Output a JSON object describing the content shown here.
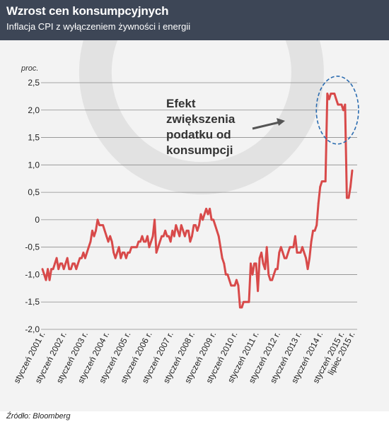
{
  "header": {
    "title": "Wzrost cen konsumpcyjnych",
    "subtitle": "Inflacja CPI z wyłączeniem żywności i energii"
  },
  "source": "Źródło: Bloomberg",
  "colors": {
    "header_bg": "#3d4656",
    "line": "#d84a4a",
    "ellipse": "#2b6cb0",
    "arrow": "#555555"
  },
  "chart_data": {
    "type": "line",
    "ylabel": "proc.",
    "ylim": [
      -2.0,
      2.5
    ],
    "yticks": [
      {
        "value": 2.5,
        "label": "2,5"
      },
      {
        "value": 2.0,
        "label": "2,0"
      },
      {
        "value": 1.5,
        "label": "1,5"
      },
      {
        "value": 1.0,
        "label": "1,0"
      },
      {
        "value": 0.5,
        "label": "0,5"
      },
      {
        "value": 0.0,
        "label": "0"
      },
      {
        "value": -0.5,
        "label": "-0,5"
      },
      {
        "value": -1.0,
        "label": "-1,0"
      },
      {
        "value": -1.5,
        "label": "-1,5"
      },
      {
        "value": -2.0,
        "label": "-2,0"
      }
    ],
    "xlim": [
      "2001-01",
      "2015-07"
    ],
    "xticks": [
      {
        "date": "2001-01",
        "label": "styczeń 2001 r."
      },
      {
        "date": "2002-01",
        "label": "styczeń 2002 r."
      },
      {
        "date": "2003-01",
        "label": "styczeń 2003 r."
      },
      {
        "date": "2004-01",
        "label": "styczeń 2004 r."
      },
      {
        "date": "2005-01",
        "label": "styczeń 2005 r."
      },
      {
        "date": "2006-01",
        "label": "styczeń 2006 r."
      },
      {
        "date": "2007-01",
        "label": "styczeń 2007 r."
      },
      {
        "date": "2008-01",
        "label": "styczeń 2008 r."
      },
      {
        "date": "2009-01",
        "label": "styczeń 2009 r."
      },
      {
        "date": "2010-01",
        "label": "styczeń 2010 r."
      },
      {
        "date": "2011-01",
        "label": "styczeń 2011 r."
      },
      {
        "date": "2012-01",
        "label": "styczeń 2012 r."
      },
      {
        "date": "2013-01",
        "label": "styczeń 2013 r."
      },
      {
        "date": "2014-01",
        "label": "styczeń 2014 r."
      },
      {
        "date": "2015-01",
        "label": "styczeń 2015 r."
      },
      {
        "date": "2015-07",
        "label": "lipiec 2015 r."
      }
    ],
    "annotation": {
      "lines": [
        "Efekt",
        "zwiększenia",
        "podatku od",
        "konsumpcji"
      ],
      "target_start": "2014-04",
      "target_end": "2015-03",
      "target_center_value": 2.0
    },
    "series": [
      {
        "points": [
          [
            "2001-01",
            -0.9
          ],
          [
            "2001-02",
            -1.0
          ],
          [
            "2001-03",
            -1.1
          ],
          [
            "2001-04",
            -0.9
          ],
          [
            "2001-05",
            -1.1
          ],
          [
            "2001-06",
            -0.9
          ],
          [
            "2001-07",
            -0.9
          ],
          [
            "2001-08",
            -0.8
          ],
          [
            "2001-09",
            -0.7
          ],
          [
            "2001-10",
            -0.9
          ],
          [
            "2001-11",
            -0.8
          ],
          [
            "2001-12",
            -0.8
          ],
          [
            "2002-01",
            -0.9
          ],
          [
            "2002-02",
            -0.8
          ],
          [
            "2002-03",
            -0.7
          ],
          [
            "2002-04",
            -0.9
          ],
          [
            "2002-05",
            -0.9
          ],
          [
            "2002-06",
            -0.8
          ],
          [
            "2002-07",
            -0.8
          ],
          [
            "2002-08",
            -0.9
          ],
          [
            "2002-09",
            -0.8
          ],
          [
            "2002-10",
            -0.7
          ],
          [
            "2002-11",
            -0.7
          ],
          [
            "2002-12",
            -0.6
          ],
          [
            "2003-01",
            -0.7
          ],
          [
            "2003-02",
            -0.6
          ],
          [
            "2003-03",
            -0.5
          ],
          [
            "2003-04",
            -0.4
          ],
          [
            "2003-05",
            -0.2
          ],
          [
            "2003-06",
            -0.3
          ],
          [
            "2003-07",
            -0.2
          ],
          [
            "2003-08",
            0.0
          ],
          [
            "2003-09",
            -0.1
          ],
          [
            "2003-10",
            -0.1
          ],
          [
            "2003-11",
            -0.1
          ],
          [
            "2003-12",
            -0.2
          ],
          [
            "2004-01",
            -0.3
          ],
          [
            "2004-02",
            -0.4
          ],
          [
            "2004-03",
            -0.3
          ],
          [
            "2004-04",
            -0.4
          ],
          [
            "2004-05",
            -0.6
          ],
          [
            "2004-06",
            -0.7
          ],
          [
            "2004-07",
            -0.6
          ],
          [
            "2004-08",
            -0.5
          ],
          [
            "2004-09",
            -0.7
          ],
          [
            "2004-10",
            -0.6
          ],
          [
            "2004-11",
            -0.6
          ],
          [
            "2004-12",
            -0.7
          ],
          [
            "2005-01",
            -0.6
          ],
          [
            "2005-02",
            -0.6
          ],
          [
            "2005-03",
            -0.5
          ],
          [
            "2005-04",
            -0.5
          ],
          [
            "2005-05",
            -0.5
          ],
          [
            "2005-06",
            -0.5
          ],
          [
            "2005-07",
            -0.4
          ],
          [
            "2005-08",
            -0.4
          ],
          [
            "2005-09",
            -0.3
          ],
          [
            "2005-10",
            -0.4
          ],
          [
            "2005-11",
            -0.4
          ],
          [
            "2005-12",
            -0.3
          ],
          [
            "2006-01",
            -0.5
          ],
          [
            "2006-02",
            -0.4
          ],
          [
            "2006-03",
            -0.3
          ],
          [
            "2006-04",
            0.0
          ],
          [
            "2006-05",
            -0.6
          ],
          [
            "2006-06",
            -0.5
          ],
          [
            "2006-07",
            -0.4
          ],
          [
            "2006-08",
            -0.3
          ],
          [
            "2006-09",
            -0.3
          ],
          [
            "2006-10",
            -0.2
          ],
          [
            "2006-11",
            -0.3
          ],
          [
            "2006-12",
            -0.3
          ],
          [
            "2007-01",
            -0.4
          ],
          [
            "2007-02",
            -0.2
          ],
          [
            "2007-03",
            -0.3
          ],
          [
            "2007-04",
            -0.1
          ],
          [
            "2007-05",
            -0.2
          ],
          [
            "2007-06",
            -0.3
          ],
          [
            "2007-07",
            -0.1
          ],
          [
            "2007-08",
            -0.2
          ],
          [
            "2007-09",
            -0.3
          ],
          [
            "2007-10",
            -0.2
          ],
          [
            "2007-11",
            -0.2
          ],
          [
            "2007-12",
            -0.4
          ],
          [
            "2008-01",
            -0.3
          ],
          [
            "2008-02",
            -0.1
          ],
          [
            "2008-03",
            -0.1
          ],
          [
            "2008-04",
            -0.2
          ],
          [
            "2008-05",
            -0.1
          ],
          [
            "2008-06",
            0.1
          ],
          [
            "2008-07",
            0.0
          ],
          [
            "2008-08",
            0.1
          ],
          [
            "2008-09",
            0.2
          ],
          [
            "2008-10",
            0.1
          ],
          [
            "2008-11",
            0.2
          ],
          [
            "2008-12",
            0.0
          ],
          [
            "2009-01",
            0.0
          ],
          [
            "2009-02",
            -0.1
          ],
          [
            "2009-03",
            -0.2
          ],
          [
            "2009-04",
            -0.3
          ],
          [
            "2009-05",
            -0.5
          ],
          [
            "2009-06",
            -0.7
          ],
          [
            "2009-07",
            -0.8
          ],
          [
            "2009-08",
            -1.0
          ],
          [
            "2009-09",
            -1.0
          ],
          [
            "2009-10",
            -1.1
          ],
          [
            "2009-11",
            -1.2
          ],
          [
            "2009-12",
            -1.2
          ],
          [
            "2010-01",
            -1.2
          ],
          [
            "2010-02",
            -1.1
          ],
          [
            "2010-03",
            -1.2
          ],
          [
            "2010-04",
            -1.6
          ],
          [
            "2010-05",
            -1.6
          ],
          [
            "2010-06",
            -1.5
          ],
          [
            "2010-07",
            -1.5
          ],
          [
            "2010-08",
            -1.5
          ],
          [
            "2010-09",
            -1.5
          ],
          [
            "2010-10",
            -0.8
          ],
          [
            "2010-11",
            -1.0
          ],
          [
            "2010-12",
            -0.8
          ],
          [
            "2011-01",
            -0.8
          ],
          [
            "2011-02",
            -1.3
          ],
          [
            "2011-03",
            -0.7
          ],
          [
            "2011-04",
            -0.6
          ],
          [
            "2011-05",
            -0.8
          ],
          [
            "2011-06",
            -0.9
          ],
          [
            "2011-07",
            -0.5
          ],
          [
            "2011-08",
            -1.0
          ],
          [
            "2011-09",
            -1.1
          ],
          [
            "2011-10",
            -1.1
          ],
          [
            "2011-11",
            -1.0
          ],
          [
            "2011-12",
            -0.9
          ],
          [
            "2012-01",
            -0.9
          ],
          [
            "2012-02",
            -0.6
          ],
          [
            "2012-03",
            -0.5
          ],
          [
            "2012-04",
            -0.6
          ],
          [
            "2012-05",
            -0.7
          ],
          [
            "2012-06",
            -0.7
          ],
          [
            "2012-07",
            -0.6
          ],
          [
            "2012-08",
            -0.5
          ],
          [
            "2012-09",
            -0.5
          ],
          [
            "2012-10",
            -0.5
          ],
          [
            "2012-11",
            -0.3
          ],
          [
            "2012-12",
            -0.6
          ],
          [
            "2013-01",
            -0.6
          ],
          [
            "2013-02",
            -0.6
          ],
          [
            "2013-03",
            -0.5
          ],
          [
            "2013-04",
            -0.6
          ],
          [
            "2013-05",
            -0.7
          ],
          [
            "2013-06",
            -0.9
          ],
          [
            "2013-07",
            -0.7
          ],
          [
            "2013-08",
            -0.4
          ],
          [
            "2013-09",
            -0.2
          ],
          [
            "2013-10",
            -0.2
          ],
          [
            "2013-11",
            -0.1
          ],
          [
            "2013-12",
            0.3
          ],
          [
            "2014-01",
            0.6
          ],
          [
            "2014-02",
            0.7
          ],
          [
            "2014-03",
            0.7
          ],
          [
            "2014-04",
            0.7
          ],
          [
            "2014-05",
            2.3
          ],
          [
            "2014-06",
            2.2
          ],
          [
            "2014-07",
            2.3
          ],
          [
            "2014-08",
            2.3
          ],
          [
            "2014-09",
            2.3
          ],
          [
            "2014-10",
            2.2
          ],
          [
            "2014-11",
            2.1
          ],
          [
            "2014-12",
            2.1
          ],
          [
            "2015-01",
            2.1
          ],
          [
            "2015-02",
            2.0
          ],
          [
            "2015-03",
            2.1
          ],
          [
            "2015-04",
            0.4
          ],
          [
            "2015-05",
            0.4
          ],
          [
            "2015-06",
            0.6
          ],
          [
            "2015-07",
            0.9
          ]
        ]
      }
    ]
  }
}
